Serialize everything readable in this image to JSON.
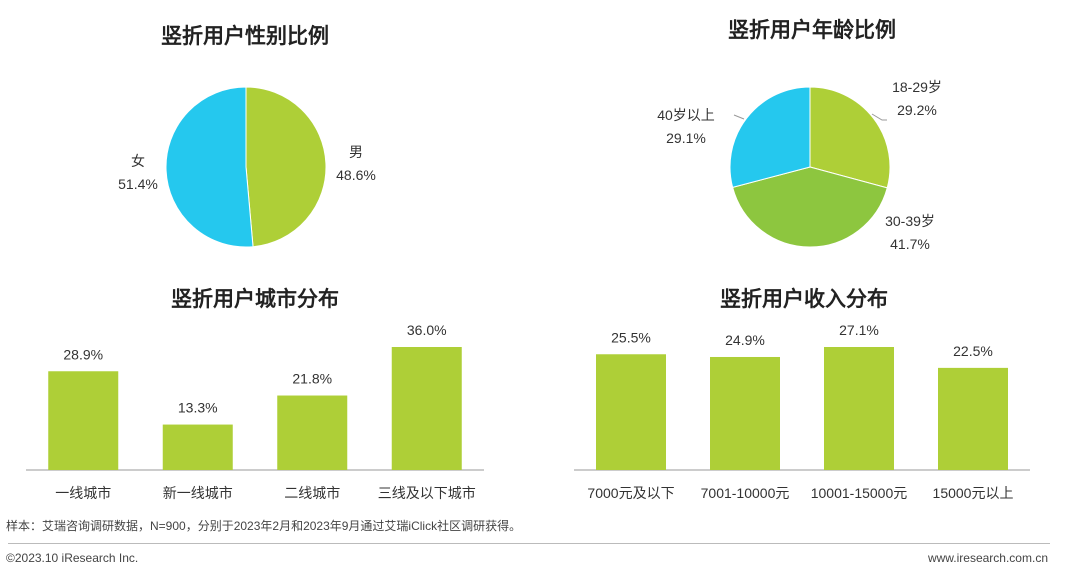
{
  "chart_data": [
    {
      "type": "pie",
      "title": "竖折用户性别比例",
      "slices": [
        {
          "label": "男",
          "value": 48.6,
          "display": "48.6%",
          "color": "#aecf37"
        },
        {
          "label": "女",
          "value": 51.4,
          "display": "51.4%",
          "color": "#25c8ee"
        }
      ]
    },
    {
      "type": "pie",
      "title": "竖折用户年龄比例",
      "slices": [
        {
          "label": "18-29岁",
          "value": 29.2,
          "display": "29.2%",
          "color": "#aecf37"
        },
        {
          "label": "30-39岁",
          "value": 41.7,
          "display": "41.7%",
          "color": "#8dc63f"
        },
        {
          "label": "40岁以上",
          "value": 29.1,
          "display": "29.1%",
          "color": "#25c8ee"
        }
      ]
    },
    {
      "type": "bar",
      "title": "竖折用户城市分布",
      "categories": [
        "一线城市",
        "新一线城市",
        "二线城市",
        "三线及以下城市"
      ],
      "values": [
        28.9,
        13.3,
        21.8,
        36.0
      ],
      "labels": [
        "28.9%",
        "13.3%",
        "21.8%",
        "36.0%"
      ],
      "color": "#aecf37"
    },
    {
      "type": "bar",
      "title": "竖折用户收入分布",
      "categories": [
        "7000元及以下",
        "7001-10000元",
        "10001-15000元",
        "15000元以上"
      ],
      "values": [
        25.5,
        24.9,
        27.1,
        22.5
      ],
      "labels": [
        "25.5%",
        "24.9%",
        "27.1%",
        "22.5%"
      ],
      "color": "#aecf37"
    }
  ],
  "footer": {
    "note": "样本：艾瑞咨询调研数据，N=900，分别于2023年2月和2023年9月通过艾瑞iClick社区调研获得。",
    "copyright": "©2023.10 iResearch Inc.",
    "website": "www.iresearch.com.cn"
  }
}
